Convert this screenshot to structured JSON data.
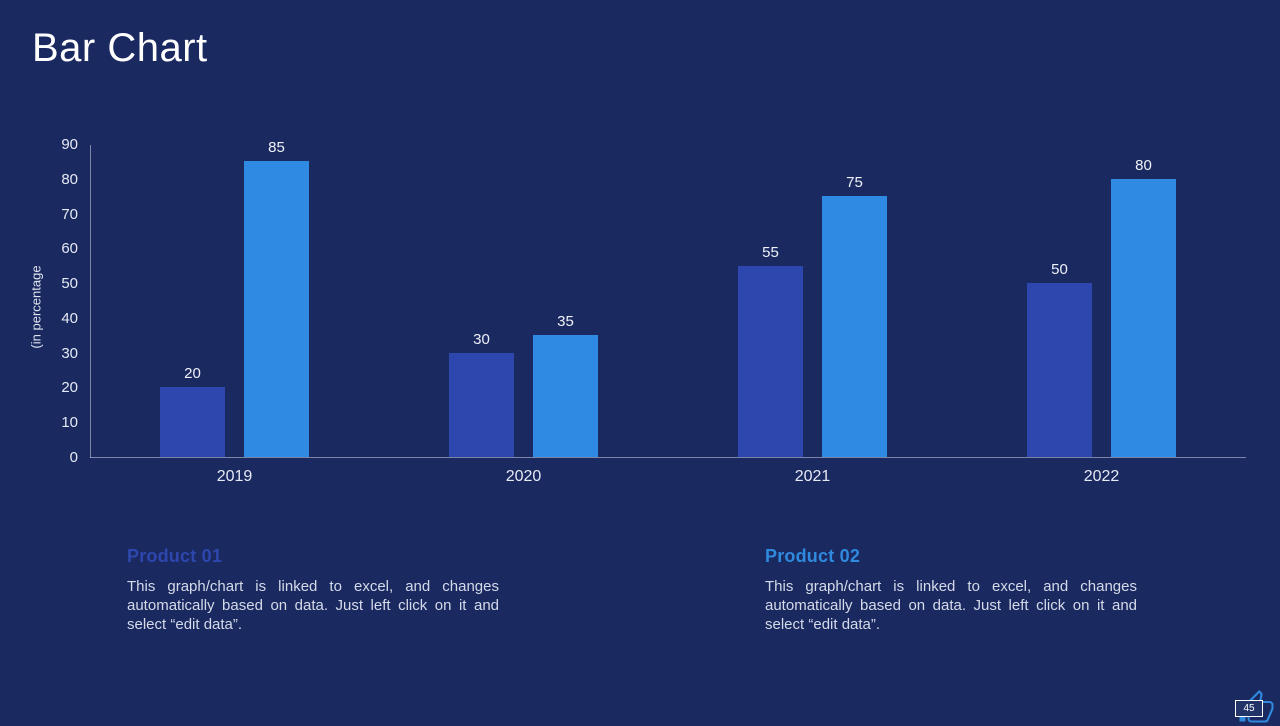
{
  "slide": {
    "title": "Bar Chart",
    "page_number": "45"
  },
  "chart_data": {
    "type": "bar",
    "title": "",
    "categories": [
      "2019",
      "2020",
      "2021",
      "2022"
    ],
    "series": [
      {
        "name": "Product 01",
        "color": "#2e47ae",
        "values": [
          20,
          30,
          55,
          50
        ]
      },
      {
        "name": "Product 02",
        "color": "#2e8ae2",
        "values": [
          85,
          35,
          75,
          80
        ]
      }
    ],
    "xlabel": "",
    "ylabel": "(in percentage",
    "ylim": [
      0,
      90
    ],
    "yticks": [
      0,
      10,
      20,
      30,
      40,
      50,
      60,
      70,
      80,
      90
    ],
    "grid": false,
    "legend": "none",
    "value_labels": true
  },
  "notes": [
    {
      "heading": "Product 01",
      "heading_color": "#2e47ae",
      "body": "This graph/chart is linked to excel, and changes automatically based on data. Just left click on it and select “edit data”."
    },
    {
      "heading": "Product 02",
      "heading_color": "#2f89dd",
      "body": "This graph/chart is linked to excel, and changes automatically based on data. Just left click on it and select “edit data”."
    }
  ],
  "colors": {
    "background": "#1a2960",
    "title_text": "#ffffff",
    "axis_text": "#e6eaf4",
    "axis_line": "#cad2e4",
    "badge_icon": "#2f89dd"
  }
}
